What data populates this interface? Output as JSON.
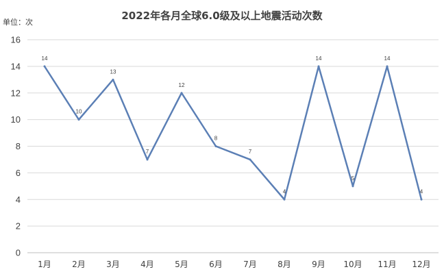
{
  "chart_data": {
    "type": "line",
    "title": "2022年各月全球6.0级及以上地震活动次数",
    "unit_label": "单位：次",
    "categories": [
      "1月",
      "2月",
      "3月",
      "4月",
      "5月",
      "6月",
      "7月",
      "8月",
      "9月",
      "10月",
      "11月",
      "12月"
    ],
    "series": [
      {
        "values": [
          14,
          10,
          13,
          7,
          12,
          8,
          7,
          4,
          14,
          5,
          14,
          4
        ]
      }
    ],
    "ylim": [
      0,
      16
    ],
    "yticks": [
      0,
      2,
      4,
      6,
      8,
      10,
      12,
      14,
      16
    ],
    "data_labels": true,
    "grid": true,
    "line_color": "#5b7fb5"
  }
}
